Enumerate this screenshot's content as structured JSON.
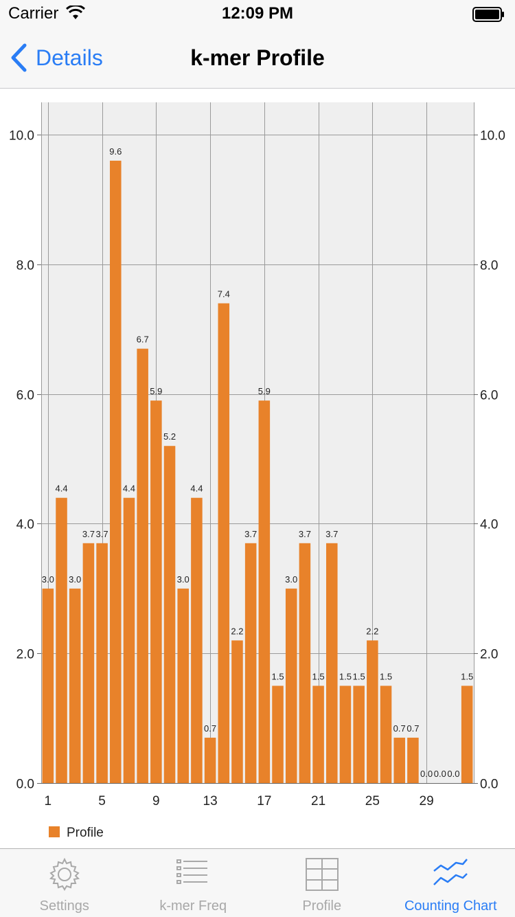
{
  "status_bar": {
    "carrier": "Carrier",
    "time": "12:09 PM"
  },
  "nav": {
    "back_label": "Details",
    "title": "k-mer Profile"
  },
  "tabs": [
    {
      "label": "Settings",
      "icon": "gear-icon",
      "active": false
    },
    {
      "label": "k-mer Freq",
      "icon": "list-icon",
      "active": false
    },
    {
      "label": "Profile",
      "icon": "grid-icon",
      "active": false
    },
    {
      "label": "Counting Chart",
      "icon": "line-chart-icon",
      "active": true
    }
  ],
  "colors": {
    "accent": "#2a7df5",
    "bar": "#e8822a",
    "plot_background": "#efefef",
    "grid": "#9a9a9a"
  },
  "chart_data": {
    "type": "bar",
    "title": "",
    "xlabel": "",
    "ylabel": "",
    "ylim": [
      0,
      10.5
    ],
    "y_ticks": [
      "0.0",
      "2.0",
      "4.0",
      "6.0",
      "8.0",
      "10.0"
    ],
    "y_tick_values": [
      0,
      2,
      4,
      6,
      8,
      10
    ],
    "x_ticks": [
      "1",
      "5",
      "9",
      "13",
      "17",
      "21",
      "25",
      "29"
    ],
    "x_tick_values": [
      1,
      5,
      9,
      13,
      17,
      21,
      25,
      29
    ],
    "x_range": [
      0.5,
      32.5
    ],
    "categories": [
      1,
      2,
      3,
      4,
      5,
      6,
      7,
      8,
      9,
      10,
      11,
      12,
      13,
      14,
      15,
      16,
      17,
      18,
      19,
      20,
      21,
      22,
      23,
      24,
      25,
      26,
      27,
      28,
      29,
      30,
      31,
      32
    ],
    "series": [
      {
        "name": "Profile",
        "color": "#e8822a",
        "values": [
          3.0,
          4.4,
          3.0,
          3.7,
          3.7,
          9.6,
          4.4,
          6.7,
          5.9,
          5.2,
          3.0,
          4.4,
          0.7,
          7.4,
          2.2,
          3.7,
          5.9,
          1.5,
          3.0,
          3.7,
          1.5,
          3.7,
          1.5,
          1.5,
          2.2,
          1.5,
          0.7,
          0.7,
          0.0,
          0.0,
          0.0,
          1.5
        ],
        "labels": [
          "3.0",
          "4.4",
          "3.0",
          "3.7",
          "3.7",
          "9.6",
          "4.4",
          "6.7",
          "5.9",
          "5.2",
          "3.0",
          "4.4",
          "0.7",
          "7.4",
          "2.2",
          "3.7",
          "5.9",
          "1.5",
          "3.0",
          "3.7",
          "1.5",
          "3.7",
          "1.5",
          "1.5",
          "2.2",
          "1.5",
          "0.7",
          "0.7",
          "0.0",
          "0.0",
          "0.0",
          "1.5"
        ]
      }
    ],
    "grid": true,
    "dual_y_axis": true,
    "legend": "bottom-left"
  }
}
